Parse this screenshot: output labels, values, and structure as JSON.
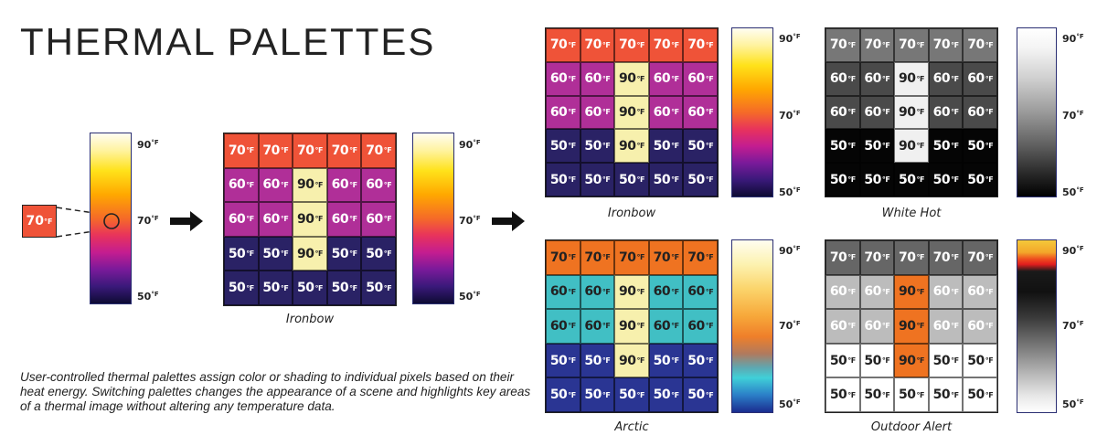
{
  "title": "THERMAL PALETTES",
  "description": "User-controlled thermal palettes assign color or shading to individual pixels based on their heat energy. Switching palettes changes the appearance of a scene and highlights key areas of a thermal image without altering any temperature data.",
  "unit": "°F",
  "sample_pixel": {
    "value": "70",
    "color": "#ef5338"
  },
  "scale_ticks": [
    "90",
    "70",
    "50"
  ],
  "temperature_grid": [
    [
      "70",
      "70",
      "70",
      "70",
      "70"
    ],
    [
      "60",
      "60",
      "90",
      "60",
      "60"
    ],
    [
      "60",
      "60",
      "90",
      "60",
      "60"
    ],
    [
      "50",
      "50",
      "90",
      "50",
      "50"
    ],
    [
      "50",
      "50",
      "50",
      "50",
      "50"
    ]
  ],
  "palettes": {
    "source": {
      "colors": {
        "70": "#ef5338",
        "60": "#b02f98",
        "90": "#f7f0ad",
        "50": "#2a2265"
      },
      "text_colors": {
        "70": "#ffffff",
        "60": "#ffffff",
        "90": "#222222",
        "50": "#ffffff"
      }
    },
    "ironbow_main": {
      "name": "Ironbow",
      "colors": {
        "70": "#ef5338",
        "60": "#b02f98",
        "90": "#f7f0ad",
        "50": "#2a2265"
      },
      "text_colors": {
        "70": "#ffffff",
        "60": "#ffffff",
        "90": "#222222",
        "50": "#ffffff"
      }
    },
    "ironbow": {
      "name": "Ironbow",
      "colors": {
        "70": "#ef5338",
        "60": "#b02f98",
        "90": "#f7f0ad",
        "50": "#2a2265"
      },
      "text_colors": {
        "70": "#ffffff",
        "60": "#ffffff",
        "90": "#222222",
        "50": "#ffffff"
      }
    },
    "white_hot": {
      "name": "White Hot",
      "colors": {
        "70": "#777777",
        "60": "#4a4a4a",
        "90": "#f0f0f0",
        "50": "#050505"
      },
      "text_colors": {
        "70": "#ffffff",
        "60": "#ffffff",
        "90": "#222222",
        "50": "#ffffff"
      }
    },
    "arctic": {
      "name": "Arctic",
      "colors": {
        "70": "#ef7321",
        "60": "#41bfc4",
        "90": "#f7f0ad",
        "50": "#2a3593"
      },
      "text_colors": {
        "70": "#222222",
        "60": "#222222",
        "90": "#222222",
        "50": "#ffffff"
      }
    },
    "outdoor_alert": {
      "name": "Outdoor Alert",
      "colors": {
        "70": "#666666",
        "60": "#bcbcbc",
        "90": "#ef7321",
        "50": "#ffffff"
      },
      "text_colors": {
        "70": "#ffffff",
        "60": "#ffffff",
        "90": "#222222",
        "50": "#222222"
      }
    }
  }
}
